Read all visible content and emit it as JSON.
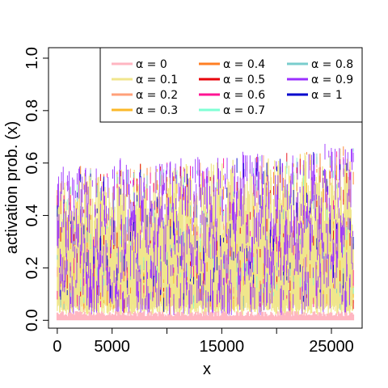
{
  "chart_data": {
    "type": "line",
    "title": "",
    "xlabel": "x",
    "ylabel": "activation prob. (x)",
    "xlim": [
      -800,
      27800
    ],
    "ylim": [
      -0.03,
      1.04
    ],
    "x_ticks": [
      0,
      5000,
      10000,
      15000,
      20000,
      25000
    ],
    "x_tick_labels": [
      "0",
      "5000",
      "",
      "15000",
      "",
      "25000"
    ],
    "y_ticks": [
      0.0,
      0.2,
      0.4,
      0.6,
      0.8,
      1.0
    ],
    "y_tick_labels": [
      "0.0",
      "0.2",
      "0.4",
      "0.6",
      "0.8",
      "1.0"
    ],
    "x_range": [
      0,
      27000
    ],
    "grid": false,
    "legend_position": "top-right",
    "series": [
      {
        "name": "α = 0",
        "color": "#ffb6c1",
        "band": [
          0.0,
          0.035
        ]
      },
      {
        "name": "α = 0.1",
        "color": "#f0e68c",
        "band": [
          0.02,
          0.62
        ]
      },
      {
        "name": "α = 0.2",
        "color": "#ffa07a",
        "band": [
          0.02,
          0.6
        ]
      },
      {
        "name": "α = 0.3",
        "color": "#fbb829",
        "band": [
          0.02,
          0.6
        ]
      },
      {
        "name": "α = 0.4",
        "color": "#ff7f24",
        "band": [
          0.02,
          0.62
        ]
      },
      {
        "name": "α = 0.5",
        "color": "#e8000b",
        "band": [
          0.02,
          0.63
        ]
      },
      {
        "name": "α = 0.6",
        "color": "#ff1493",
        "band": [
          0.02,
          0.63
        ]
      },
      {
        "name": "α = 0.7",
        "color": "#7fffd4",
        "band": [
          0.02,
          0.64
        ]
      },
      {
        "name": "α = 0.8",
        "color": "#79cdcd",
        "band": [
          0.02,
          0.65
        ]
      },
      {
        "name": "α = 0.9",
        "color": "#9b30ff",
        "band": [
          0.02,
          0.66
        ]
      },
      {
        "name": "α = 1",
        "color": "#0000cd",
        "band": [
          0.02,
          0.66
        ]
      }
    ]
  }
}
